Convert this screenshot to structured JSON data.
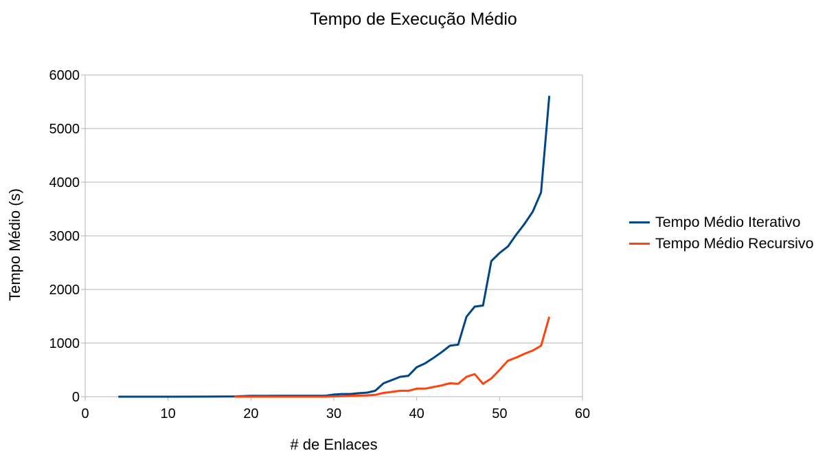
{
  "chart_data": {
    "type": "line",
    "title": "Tempo de Execução Médio",
    "xlabel": "# de Enlaces",
    "ylabel": "Tempo Médio (s)",
    "xlim": [
      0,
      60
    ],
    "ylim": [
      0,
      6000
    ],
    "xticks": [
      0,
      10,
      20,
      30,
      40,
      50,
      60
    ],
    "yticks": [
      0,
      1000,
      2000,
      3000,
      4000,
      5000,
      6000
    ],
    "grid": true,
    "legend_position": "right",
    "series": [
      {
        "name": "Tempo Médio Iterativo",
        "color": "#004586",
        "points": [
          [
            4,
            0
          ],
          [
            10,
            0
          ],
          [
            15,
            1
          ],
          [
            18,
            5
          ],
          [
            20,
            15
          ],
          [
            22,
            17
          ],
          [
            24,
            18
          ],
          [
            26,
            18
          ],
          [
            29,
            18
          ],
          [
            30,
            40
          ],
          [
            31,
            50
          ],
          [
            32,
            50
          ],
          [
            33,
            65
          ],
          [
            34,
            75
          ],
          [
            35,
            110
          ],
          [
            36,
            250
          ],
          [
            37,
            310
          ],
          [
            38,
            370
          ],
          [
            39,
            390
          ],
          [
            40,
            550
          ],
          [
            41,
            620
          ],
          [
            42,
            720
          ],
          [
            43,
            830
          ],
          [
            44,
            950
          ],
          [
            45,
            970
          ],
          [
            46,
            1490
          ],
          [
            47,
            1680
          ],
          [
            48,
            1700
          ],
          [
            49,
            2530
          ],
          [
            50,
            2680
          ],
          [
            51,
            2800
          ],
          [
            52,
            3020
          ],
          [
            53,
            3220
          ],
          [
            54,
            3450
          ],
          [
            55,
            3810
          ],
          [
            56,
            5610
          ]
        ]
      },
      {
        "name": "Tempo Médio Recursivo",
        "color": "#ff420e",
        "points": [
          [
            18,
            0
          ],
          [
            20,
            0
          ],
          [
            21,
            0
          ],
          [
            22,
            0
          ],
          [
            24,
            0
          ],
          [
            26,
            0
          ],
          [
            29,
            0
          ],
          [
            30,
            5
          ],
          [
            31,
            10
          ],
          [
            32,
            15
          ],
          [
            33,
            20
          ],
          [
            34,
            25
          ],
          [
            35,
            35
          ],
          [
            36,
            70
          ],
          [
            37,
            90
          ],
          [
            38,
            110
          ],
          [
            39,
            110
          ],
          [
            40,
            150
          ],
          [
            41,
            150
          ],
          [
            42,
            180
          ],
          [
            43,
            210
          ],
          [
            44,
            250
          ],
          [
            45,
            240
          ],
          [
            46,
            370
          ],
          [
            47,
            420
          ],
          [
            48,
            240
          ],
          [
            49,
            340
          ],
          [
            50,
            500
          ],
          [
            51,
            670
          ],
          [
            52,
            730
          ],
          [
            53,
            800
          ],
          [
            54,
            860
          ],
          [
            55,
            950
          ],
          [
            56,
            1490
          ]
        ]
      }
    ]
  }
}
